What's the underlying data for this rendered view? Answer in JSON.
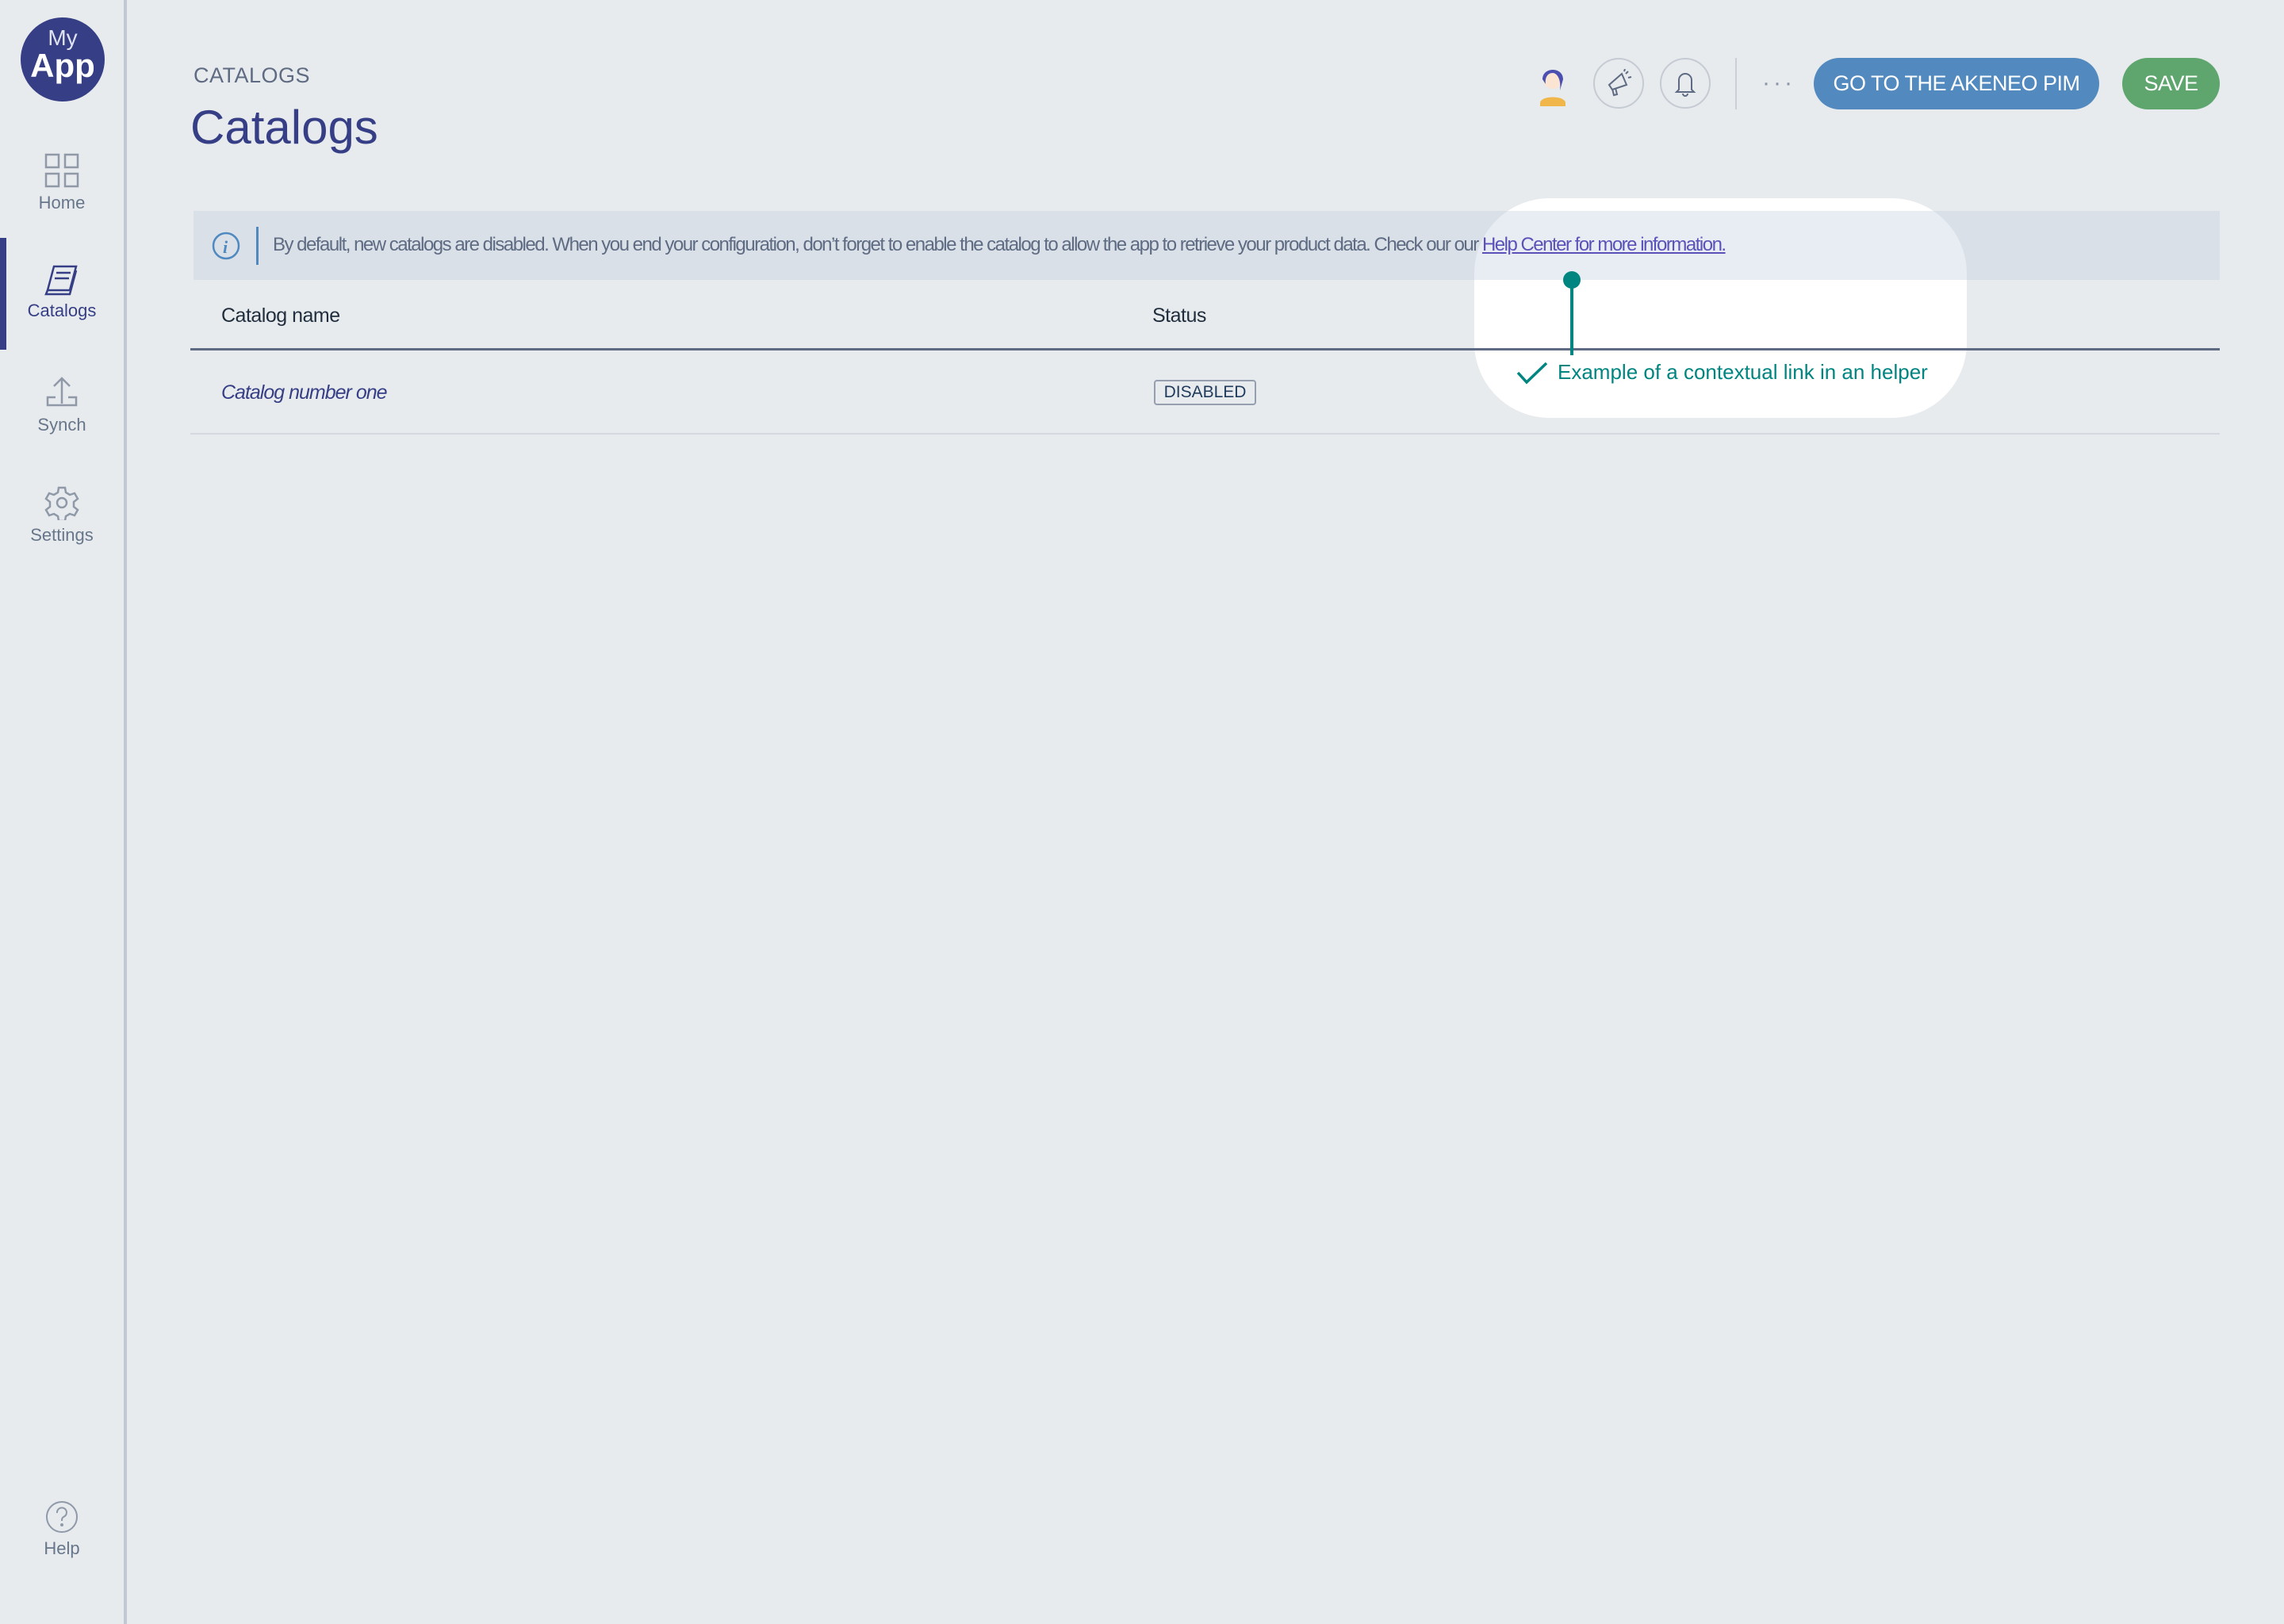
{
  "sidebar": {
    "logo": {
      "line1": "My",
      "line2": "App"
    },
    "items": [
      {
        "label": "Home",
        "icon": "grid-icon"
      },
      {
        "label": "Catalogs",
        "icon": "catalog-book-icon",
        "active": true
      },
      {
        "label": "Synch",
        "icon": "upload-icon"
      },
      {
        "label": "Settings",
        "icon": "gear-icon"
      }
    ],
    "help": {
      "label": "Help",
      "icon": "question-circle-icon"
    }
  },
  "header": {
    "breadcrumb": "CATALOGS",
    "title": "Catalogs",
    "go_label": "GO TO THE AKENEO PIM",
    "save_label": "SAVE",
    "more": "···"
  },
  "info": {
    "text": "By default, new catalogs are disabled. When you end your configuration, don’t forget to enable the catalog to allow the app to retrieve your product data. Check our our ",
    "link": "Help Center for more information."
  },
  "table": {
    "headers": [
      "Catalog name",
      "Status"
    ],
    "rows": [
      {
        "name": "Catalog number one",
        "status": "DISABLED"
      }
    ]
  },
  "annotation": {
    "text": "Example of a contextual link in an helper",
    "color": "#008580"
  },
  "colors": {
    "primary": "#363f85",
    "go_button": "#5289be",
    "save_button": "#5ea56e",
    "link": "#5a52b8"
  }
}
